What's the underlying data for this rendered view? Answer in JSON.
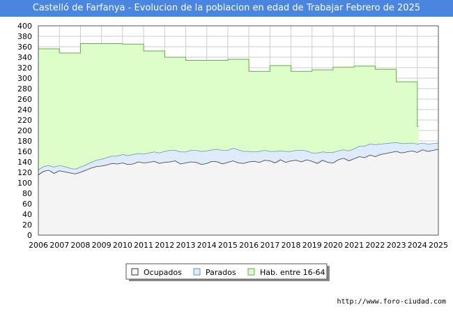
{
  "header": {
    "title": "Castelló de Farfanya - Evolucion de la poblacion en edad de Trabajar Febrero de 2025"
  },
  "footer": {
    "source": "http://www.foro-ciudad.com"
  },
  "colors": {
    "title_bg": "#4a86e0",
    "hab_fill": "#ddfdc9",
    "hab_line": "#6aa84f",
    "parados_fill": "#ddebfb",
    "parados_line": "#6c8ebf",
    "ocupados_fill": "#f4f4f4",
    "ocupados_line": "#333333",
    "grid": "#cccccc"
  },
  "chart_data": {
    "type": "area",
    "title": "Castelló de Farfanya - Evolucion de la poblacion en edad de Trabajar Febrero de 2025",
    "xlabel": "",
    "ylabel": "",
    "xlim": [
      2006,
      2025
    ],
    "ylim": [
      0,
      400
    ],
    "x_ticks": [
      2006,
      2007,
      2008,
      2009,
      2010,
      2011,
      2012,
      2013,
      2014,
      2015,
      2016,
      2017,
      2018,
      2019,
      2020,
      2021,
      2022,
      2023,
      2024,
      2025
    ],
    "y_ticks": [
      0,
      20,
      40,
      60,
      80,
      100,
      120,
      140,
      160,
      180,
      200,
      220,
      240,
      260,
      280,
      300,
      320,
      340,
      360,
      380,
      400
    ],
    "grid": true,
    "legend_position": "bottom",
    "series": [
      {
        "name": "Ocupados",
        "x": [
          2006.0,
          2006.25,
          2006.5,
          2006.75,
          2007.0,
          2007.25,
          2007.5,
          2007.75,
          2008.0,
          2008.25,
          2008.5,
          2008.75,
          2009.0,
          2009.25,
          2009.5,
          2009.75,
          2010.0,
          2010.25,
          2010.5,
          2010.75,
          2011.0,
          2011.25,
          2011.5,
          2011.75,
          2012.0,
          2012.25,
          2012.5,
          2012.75,
          2013.0,
          2013.25,
          2013.5,
          2013.75,
          2014.0,
          2014.25,
          2014.5,
          2014.75,
          2015.0,
          2015.25,
          2015.5,
          2015.75,
          2016.0,
          2016.25,
          2016.5,
          2016.75,
          2017.0,
          2017.25,
          2017.5,
          2017.75,
          2018.0,
          2018.25,
          2018.5,
          2018.75,
          2019.0,
          2019.25,
          2019.5,
          2019.75,
          2020.0,
          2020.25,
          2020.5,
          2020.75,
          2021.0,
          2021.25,
          2021.5,
          2021.75,
          2022.0,
          2022.25,
          2022.5,
          2022.75,
          2023.0,
          2023.25,
          2023.5,
          2023.75,
          2024.0,
          2024.25,
          2024.5,
          2024.75,
          2025.0
        ],
        "values": [
          115,
          122,
          124,
          118,
          123,
          121,
          119,
          117,
          120,
          124,
          128,
          131,
          132,
          134,
          137,
          136,
          138,
          135,
          136,
          140,
          138,
          139,
          141,
          137,
          139,
          140,
          142,
          136,
          138,
          140,
          139,
          135,
          137,
          141,
          140,
          136,
          139,
          142,
          138,
          137,
          140,
          141,
          139,
          143,
          142,
          138,
          144,
          139,
          142,
          143,
          140,
          144,
          141,
          137,
          143,
          139,
          138,
          144,
          147,
          142,
          146,
          150,
          148,
          153,
          150,
          154,
          156,
          158,
          160,
          157,
          159,
          161,
          158,
          163,
          160,
          162,
          164
        ]
      },
      {
        "name": "Parados",
        "x": [
          2006.0,
          2006.25,
          2006.5,
          2006.75,
          2007.0,
          2007.25,
          2007.5,
          2007.75,
          2008.0,
          2008.25,
          2008.5,
          2008.75,
          2009.0,
          2009.25,
          2009.5,
          2009.75,
          2010.0,
          2010.25,
          2010.5,
          2010.75,
          2011.0,
          2011.25,
          2011.5,
          2011.75,
          2012.0,
          2012.25,
          2012.5,
          2012.75,
          2013.0,
          2013.25,
          2013.5,
          2013.75,
          2014.0,
          2014.25,
          2014.5,
          2014.75,
          2015.0,
          2015.25,
          2015.5,
          2015.75,
          2016.0,
          2016.25,
          2016.5,
          2016.75,
          2017.0,
          2017.25,
          2017.5,
          2017.75,
          2018.0,
          2018.25,
          2018.5,
          2018.75,
          2019.0,
          2019.25,
          2019.5,
          2019.75,
          2020.0,
          2020.25,
          2020.5,
          2020.75,
          2021.0,
          2021.25,
          2021.5,
          2021.75,
          2022.0,
          2022.25,
          2022.5,
          2022.75,
          2023.0,
          2023.25,
          2023.5,
          2023.75,
          2024.0,
          2024.25,
          2024.5,
          2024.75,
          2025.0
        ],
        "values": [
          10,
          9,
          9,
          12,
          10,
          10,
          9,
          9,
          10,
          10,
          11,
          12,
          13,
          14,
          14,
          15,
          16,
          17,
          18,
          16,
          17,
          18,
          18,
          20,
          21,
          22,
          20,
          23,
          21,
          22,
          23,
          25,
          24,
          22,
          24,
          26,
          23,
          24,
          25,
          23,
          20,
          18,
          21,
          19,
          18,
          22,
          17,
          21,
          18,
          19,
          22,
          17,
          16,
          20,
          16,
          19,
          20,
          17,
          16,
          19,
          19,
          20,
          22,
          21,
          23,
          20,
          19,
          18,
          17,
          18,
          16,
          15,
          16,
          13,
          14,
          13,
          12
        ]
      },
      {
        "name": "Hab. entre 16-64",
        "x": [
          2006.0,
          2007.0,
          2008.0,
          2009.0,
          2010.0,
          2011.0,
          2012.0,
          2013.0,
          2014.0,
          2015.0,
          2016.0,
          2017.0,
          2018.0,
          2019.0,
          2020.0,
          2021.0,
          2022.0,
          2023.0,
          2024.0
        ],
        "values": [
          356,
          348,
          366,
          366,
          365,
          352,
          340,
          334,
          334,
          336,
          313,
          324,
          313,
          316,
          321,
          323,
          317,
          293,
          208
        ]
      }
    ]
  }
}
